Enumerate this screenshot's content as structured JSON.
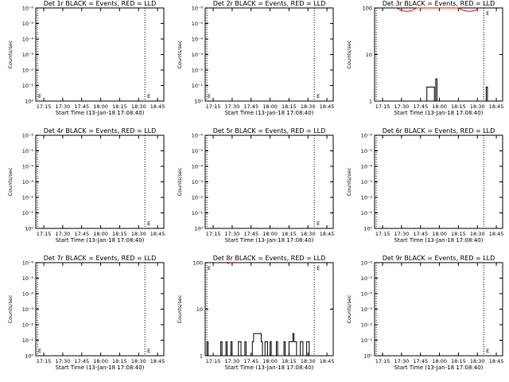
{
  "figure": {
    "background": "#ffffff",
    "axis_color": "#000000",
    "events_color": "#000000",
    "lld_color": "#ff0000"
  },
  "chart_data": [
    {
      "type": "line",
      "title": "Det 1r BLACK = Events, RED = LLD",
      "xlabel": "Start Time (13-Jan-18 17:08:40)",
      "ylabel": "Counts/sec",
      "xticks": [
        "17:15",
        "17:30",
        "17:45",
        "18:00",
        "18:15",
        "18:30",
        "18:45"
      ],
      "xlim": [
        "17:08:40",
        "18:50:00"
      ],
      "yscale": "log",
      "yticks": [
        "10⁰",
        "10⁻¹",
        "10⁻²",
        "10⁻³",
        "10⁻⁴",
        "10⁻⁵",
        "10⁻⁶"
      ],
      "markers": [
        {
          "x": "17:10"
        },
        {
          "x": "18:35"
        }
      ],
      "series": [],
      "flags": [
        "E",
        "E"
      ]
    },
    {
      "type": "line",
      "title": "Det 2r BLACK = Events, RED = LLD",
      "xlabel": "Start Time (13-Jan-18 17:08:40)",
      "ylabel": "Counts/sec",
      "xticks": [
        "17:15",
        "17:30",
        "17:45",
        "18:00",
        "18:15",
        "18:30",
        "18:45"
      ],
      "xlim": [
        "17:08:40",
        "18:50:00"
      ],
      "yscale": "log",
      "yticks": [
        "10⁰",
        "10⁻¹",
        "10⁻²",
        "10⁻³",
        "10⁻⁴",
        "10⁻⁵",
        "10⁻⁶"
      ],
      "markers": [
        {
          "x": "17:10"
        },
        {
          "x": "18:35"
        }
      ],
      "series": [],
      "flags": [
        "E",
        "E"
      ]
    },
    {
      "type": "line",
      "title": "Det 3r BLACK = Events, RED = LLD",
      "xlabel": "Start Time (13-Jan-18 17:08:40)",
      "ylabel": "Counts/sec",
      "xticks": [
        "17:15",
        "17:30",
        "17:45",
        "18:00",
        "18:15",
        "18:30",
        "18:45"
      ],
      "xlim": [
        "17:08:40",
        "18:50:00"
      ],
      "yscale": "log",
      "ylim": [
        1,
        100
      ],
      "yticks": [
        "100",
        "10",
        "1"
      ],
      "markers": [
        {
          "x": "17:10"
        },
        {
          "x": "18:35"
        }
      ],
      "series": [
        {
          "color": "#ff0000",
          "points": [
            [
              "17:26",
              100
            ],
            [
              "17:30",
              88
            ],
            [
              "17:34",
              84
            ],
            [
              "17:38",
              88
            ],
            [
              "17:42",
              100
            ],
            [
              "18:15",
              100
            ],
            [
              "18:19",
              88
            ],
            [
              "18:24",
              84
            ],
            [
              "18:28",
              88
            ],
            [
              "18:31",
              100
            ]
          ]
        },
        {
          "color": "#000000",
          "points": [
            [
              "17:50",
              1
            ],
            [
              "17:50",
              2
            ],
            [
              "17:56",
              2
            ],
            [
              "17:56",
              1
            ],
            [
              "17:57",
              1
            ],
            [
              "17:57",
              3
            ],
            [
              "17:58",
              3
            ],
            [
              "17:58",
              1
            ],
            [
              "18:37",
              1
            ],
            [
              "18:37",
              2
            ],
            [
              "18:38",
              2
            ],
            [
              "18:38",
              1
            ]
          ]
        }
      ],
      "flags": [
        "E"
      ]
    },
    {
      "type": "line",
      "title": "Det 4r BLACK = Events, RED = LLD",
      "xlabel": "Start Time (13-Jan-18 17:08:40)",
      "ylabel": "Counts/sec",
      "xticks": [
        "17:15",
        "17:30",
        "17:45",
        "18:00",
        "18:15",
        "18:30",
        "18:45"
      ],
      "xlim": [
        "17:08:40",
        "18:50:00"
      ],
      "yscale": "log",
      "yticks": [
        "10⁰",
        "10⁻¹",
        "10⁻²",
        "10⁻³",
        "10⁻⁴",
        "10⁻⁵",
        "10⁻⁶"
      ],
      "markers": [
        {
          "x": "17:10"
        },
        {
          "x": "18:35"
        }
      ],
      "series": [],
      "flags": [
        "E"
      ]
    },
    {
      "type": "line",
      "title": "Det 5r BLACK = Events, RED = LLD",
      "xlabel": "Start Time (13-Jan-18 17:08:40)",
      "ylabel": "Counts/sec",
      "xticks": [
        "17:15",
        "17:30",
        "17:45",
        "18:00",
        "18:15",
        "18:30",
        "18:45"
      ],
      "xlim": [
        "17:08:40",
        "18:50:00"
      ],
      "yscale": "log",
      "yticks": [
        "10⁰",
        "10⁻¹",
        "10⁻²",
        "10⁻³",
        "10⁻⁴",
        "10⁻⁵",
        "10⁻⁶"
      ],
      "markers": [
        {
          "x": "17:10"
        },
        {
          "x": "18:35"
        }
      ],
      "series": [],
      "flags": [
        "E"
      ]
    },
    {
      "type": "line",
      "title": "Det 6r BLACK = Events, RED = LLD",
      "xlabel": "Start Time (13-Jan-18 17:08:40)",
      "ylabel": "Counts/sec",
      "xticks": [
        "17:15",
        "17:30",
        "17:45",
        "18:00",
        "18:15",
        "18:30",
        "18:45"
      ],
      "xlim": [
        "17:08:40",
        "18:50:00"
      ],
      "yscale": "log",
      "yticks": [
        "10⁰",
        "10⁻¹",
        "10⁻²",
        "10⁻³",
        "10⁻⁴",
        "10⁻⁵",
        "10⁻⁶"
      ],
      "markers": [
        {
          "x": "17:10"
        },
        {
          "x": "18:35"
        }
      ],
      "series": [],
      "flags": []
    },
    {
      "type": "line",
      "title": "Det 7r BLACK = Events, RED = LLD",
      "xlabel": "Start Time (13-Jan-18 17:08:40)",
      "ylabel": "Counts/sec",
      "xticks": [
        "17:15",
        "17:30",
        "17:45",
        "18:00",
        "18:15",
        "18:30",
        "18:45"
      ],
      "xlim": [
        "17:08:40",
        "18:50:00"
      ],
      "yscale": "log",
      "yticks": [
        "10⁰",
        "10⁻¹",
        "10⁻²",
        "10⁻³",
        "10⁻⁴",
        "10⁻⁵",
        "10⁻⁶"
      ],
      "markers": [
        {
          "x": "17:10"
        },
        {
          "x": "18:35"
        }
      ],
      "series": [],
      "flags": [
        "E",
        "E"
      ]
    },
    {
      "type": "line",
      "title": "Det 8r BLACK = Events, RED = LLD",
      "xlabel": "Start Time (13-Jan-18 17:08:40)",
      "ylabel": "Counts/sec",
      "xticks": [
        "17:15",
        "17:30",
        "17:45",
        "18:00",
        "18:15",
        "18:30",
        "18:45"
      ],
      "xlim": [
        "17:08:40",
        "18:50:00"
      ],
      "yscale": "log",
      "ylim": [
        1,
        100
      ],
      "yticks": [
        "100",
        "10",
        "1"
      ],
      "markers": [
        {
          "x": "17:10"
        },
        {
          "x": "18:35"
        }
      ],
      "series": [
        {
          "color": "#ff0000",
          "points": [
            [
              "17:25",
              100
            ],
            [
              "17:27",
              96
            ],
            [
              "17:29",
              100
            ]
          ]
        },
        {
          "color": "#000000",
          "points": [
            [
              "17:10",
              1
            ],
            [
              "17:10",
              2
            ],
            [
              "17:11",
              2
            ],
            [
              "17:11",
              1
            ],
            [
              "17:21",
              1
            ],
            [
              "17:21",
              2
            ],
            [
              "17:22",
              2
            ],
            [
              "17:22",
              1
            ],
            [
              "17:25",
              1
            ],
            [
              "17:25",
              2
            ],
            [
              "17:26",
              2
            ],
            [
              "17:26",
              1
            ],
            [
              "17:29",
              1
            ],
            [
              "17:29",
              2
            ],
            [
              "17:30",
              2
            ],
            [
              "17:30",
              1
            ],
            [
              "17:35",
              1
            ],
            [
              "17:35",
              2
            ],
            [
              "17:37",
              2
            ],
            [
              "17:37",
              1
            ],
            [
              "17:40",
              1
            ],
            [
              "17:40",
              2
            ],
            [
              "17:41",
              2
            ],
            [
              "17:41",
              1
            ],
            [
              "17:46",
              1
            ],
            [
              "17:46",
              2
            ],
            [
              "17:47",
              2
            ],
            [
              "17:47",
              3
            ],
            [
              "17:53",
              3
            ],
            [
              "17:53",
              2
            ],
            [
              "17:54",
              2
            ],
            [
              "17:54",
              1
            ],
            [
              "17:56",
              1
            ],
            [
              "17:56",
              2
            ],
            [
              "17:58",
              2
            ],
            [
              "17:58",
              1
            ],
            [
              "18:00",
              1
            ],
            [
              "18:00",
              2
            ],
            [
              "18:01",
              2
            ],
            [
              "18:01",
              1
            ],
            [
              "18:05",
              1
            ],
            [
              "18:05",
              2
            ],
            [
              "18:06",
              2
            ],
            [
              "18:06",
              1
            ],
            [
              "18:11",
              1
            ],
            [
              "18:11",
              2
            ],
            [
              "18:12",
              2
            ],
            [
              "18:12",
              1
            ],
            [
              "18:15",
              1
            ],
            [
              "18:15",
              2
            ],
            [
              "18:18",
              2
            ],
            [
              "18:18",
              3
            ],
            [
              "18:19",
              3
            ],
            [
              "18:19",
              2
            ],
            [
              "18:21",
              2
            ],
            [
              "18:21",
              1
            ],
            [
              "18:24",
              1
            ],
            [
              "18:24",
              2
            ],
            [
              "18:26",
              2
            ],
            [
              "18:26",
              1
            ],
            [
              "18:29",
              1
            ],
            [
              "18:29",
              2
            ],
            [
              "18:31",
              2
            ],
            [
              "18:31",
              1
            ]
          ]
        }
      ],
      "flags": [
        "E",
        "E"
      ]
    },
    {
      "type": "line",
      "title": "Det 9r BLACK = Events, RED = LLD",
      "xlabel": "Start Time (13-Jan-18 17:08:40)",
      "ylabel": "Counts/sec",
      "xticks": [
        "17:15",
        "17:30",
        "17:45",
        "18:00",
        "18:15",
        "18:30",
        "18:45"
      ],
      "xlim": [
        "17:08:40",
        "18:50:00"
      ],
      "yscale": "log",
      "yticks": [
        "10⁰",
        "10⁻¹",
        "10⁻²",
        "10⁻³",
        "10⁻⁴",
        "10⁻⁵",
        "10⁻⁶"
      ],
      "markers": [
        {
          "x": "17:10"
        },
        {
          "x": "18:35"
        }
      ],
      "series": [],
      "flags": [
        "E"
      ]
    }
  ]
}
